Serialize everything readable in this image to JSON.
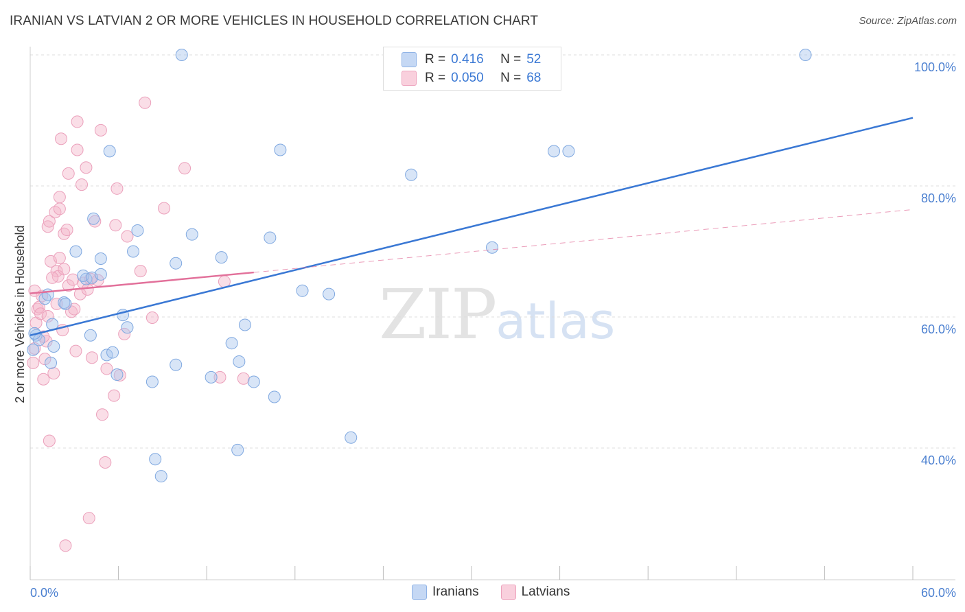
{
  "title": "IRANIAN VS LATVIAN 2 OR MORE VEHICLES IN HOUSEHOLD CORRELATION CHART",
  "source": "Source: ZipAtlas.com",
  "watermark": {
    "zip": "ZIP",
    "atlas": "atlas"
  },
  "legend": {
    "rows": [
      {
        "r_label": "R =",
        "r_value": "0.416",
        "n_label": "N =",
        "n_value": "52",
        "color": "#a9c6ee"
      },
      {
        "r_label": "R =",
        "r_value": "0.050",
        "n_label": "N =",
        "n_value": "68",
        "color": "#f4b6c9"
      }
    ]
  },
  "bottom_legend": {
    "iranians": "Iranians",
    "latvians": "Latvians"
  },
  "chart_data": {
    "type": "scatter",
    "title": "IRANIAN VS LATVIAN 2 OR MORE VEHICLES IN HOUSEHOLD CORRELATION CHART",
    "xlabel": "",
    "ylabel": "2 or more Vehicles in Household",
    "xlim": [
      0,
      60
    ],
    "ylim": [
      20,
      102
    ],
    "x_tick_labels": [
      "0.0%",
      "60.0%"
    ],
    "y_tick_labels": [
      "40.0%",
      "60.0%",
      "80.0%",
      "100.0%"
    ],
    "y_ticks": [
      40,
      60,
      80,
      100
    ],
    "colors": {
      "iranians": "#3a78d4",
      "latvians": "#e2709a",
      "iranians_fill": "#a9c6ee",
      "latvians_fill": "#f4b6c9"
    },
    "series": [
      {
        "name": "Iranians",
        "r": 0.416,
        "n": 52,
        "trend": {
          "x": [
            0,
            60
          ],
          "y": [
            57.2,
            90.4
          ],
          "style": "solid"
        },
        "points": [
          [
            0.2,
            55.0
          ],
          [
            0.4,
            57.2
          ],
          [
            0.6,
            56.5
          ],
          [
            1.0,
            62.8
          ],
          [
            1.2,
            63.4
          ],
          [
            1.6,
            55.5
          ],
          [
            1.5,
            58.9
          ],
          [
            1.4,
            53.0
          ],
          [
            2.3,
            62.2
          ],
          [
            2.4,
            62.0
          ],
          [
            3.1,
            70.0
          ],
          [
            3.8,
            65.8
          ],
          [
            3.6,
            66.3
          ],
          [
            4.2,
            66.0
          ],
          [
            4.1,
            57.2
          ],
          [
            4.3,
            75.0
          ],
          [
            4.8,
            66.5
          ],
          [
            4.8,
            68.9
          ],
          [
            5.2,
            54.2
          ],
          [
            5.4,
            85.3
          ],
          [
            5.6,
            54.6
          ],
          [
            5.9,
            51.2
          ],
          [
            6.3,
            60.3
          ],
          [
            6.6,
            58.4
          ],
          [
            7.0,
            70.0
          ],
          [
            7.3,
            73.2
          ],
          [
            8.3,
            50.1
          ],
          [
            8.5,
            38.3
          ],
          [
            8.9,
            35.7
          ],
          [
            9.9,
            52.7
          ],
          [
            9.9,
            68.2
          ],
          [
            10.3,
            100.0
          ],
          [
            11.0,
            72.6
          ],
          [
            12.3,
            50.8
          ],
          [
            13.0,
            69.1
          ],
          [
            13.7,
            56.0
          ],
          [
            14.1,
            39.7
          ],
          [
            14.2,
            53.2
          ],
          [
            14.6,
            58.8
          ],
          [
            15.2,
            50.1
          ],
          [
            16.3,
            72.1
          ],
          [
            16.6,
            47.8
          ],
          [
            17.0,
            85.5
          ],
          [
            18.5,
            64.0
          ],
          [
            20.3,
            63.5
          ],
          [
            21.8,
            41.6
          ],
          [
            25.9,
            81.7
          ],
          [
            31.4,
            70.6
          ],
          [
            35.6,
            85.3
          ],
          [
            36.6,
            85.3
          ],
          [
            52.7,
            100.0
          ],
          [
            0.3,
            57.5
          ]
        ]
      },
      {
        "name": "Latvians",
        "r": 0.05,
        "n": 68,
        "trend": {
          "x": [
            0,
            15.2
          ],
          "y": [
            63.6,
            66.8
          ],
          "style": "solid"
        },
        "trend_extended": {
          "x": [
            15.2,
            60
          ],
          "y": [
            66.8,
            76.4
          ],
          "style": "dashed"
        },
        "points": [
          [
            0.2,
            53.0
          ],
          [
            0.3,
            55.2
          ],
          [
            0.4,
            59.1
          ],
          [
            0.5,
            61.2
          ],
          [
            0.6,
            61.5
          ],
          [
            0.7,
            60.5
          ],
          [
            0.8,
            63.2
          ],
          [
            0.9,
            50.5
          ],
          [
            1.0,
            53.6
          ],
          [
            1.1,
            56.3
          ],
          [
            1.2,
            60.1
          ],
          [
            1.2,
            73.8
          ],
          [
            1.3,
            74.6
          ],
          [
            1.3,
            41.1
          ],
          [
            1.4,
            68.5
          ],
          [
            1.6,
            51.4
          ],
          [
            1.7,
            76.0
          ],
          [
            1.8,
            67.0
          ],
          [
            1.9,
            66.2
          ],
          [
            2.0,
            69.0
          ],
          [
            2.0,
            76.5
          ],
          [
            2.0,
            78.3
          ],
          [
            2.1,
            87.2
          ],
          [
            2.3,
            72.7
          ],
          [
            2.3,
            67.3
          ],
          [
            2.4,
            25.1
          ],
          [
            2.5,
            73.3
          ],
          [
            2.6,
            81.9
          ],
          [
            2.6,
            64.8
          ],
          [
            2.8,
            60.8
          ],
          [
            2.9,
            65.7
          ],
          [
            3.0,
            61.2
          ],
          [
            3.1,
            54.8
          ],
          [
            3.2,
            85.5
          ],
          [
            3.2,
            89.8
          ],
          [
            3.4,
            63.5
          ],
          [
            3.5,
            80.2
          ],
          [
            3.6,
            65.2
          ],
          [
            3.8,
            82.8
          ],
          [
            3.9,
            64.2
          ],
          [
            4.0,
            29.3
          ],
          [
            4.1,
            65.8
          ],
          [
            4.2,
            53.8
          ],
          [
            4.4,
            74.6
          ],
          [
            4.6,
            65.6
          ],
          [
            4.8,
            88.5
          ],
          [
            4.9,
            45.1
          ],
          [
            5.1,
            37.8
          ],
          [
            5.2,
            52.1
          ],
          [
            5.7,
            48.0
          ],
          [
            5.8,
            74.0
          ],
          [
            5.9,
            79.6
          ],
          [
            6.1,
            51.1
          ],
          [
            6.4,
            57.4
          ],
          [
            6.6,
            72.3
          ],
          [
            7.5,
            67.0
          ],
          [
            7.8,
            92.7
          ],
          [
            8.3,
            59.9
          ],
          [
            9.1,
            76.6
          ],
          [
            10.5,
            82.7
          ],
          [
            12.9,
            50.8
          ],
          [
            13.2,
            65.4
          ],
          [
            14.5,
            50.6
          ],
          [
            0.3,
            64.0
          ],
          [
            1.8,
            62.0
          ],
          [
            2.2,
            58.0
          ],
          [
            0.9,
            57.0
          ],
          [
            1.5,
            66.0
          ]
        ]
      }
    ]
  }
}
